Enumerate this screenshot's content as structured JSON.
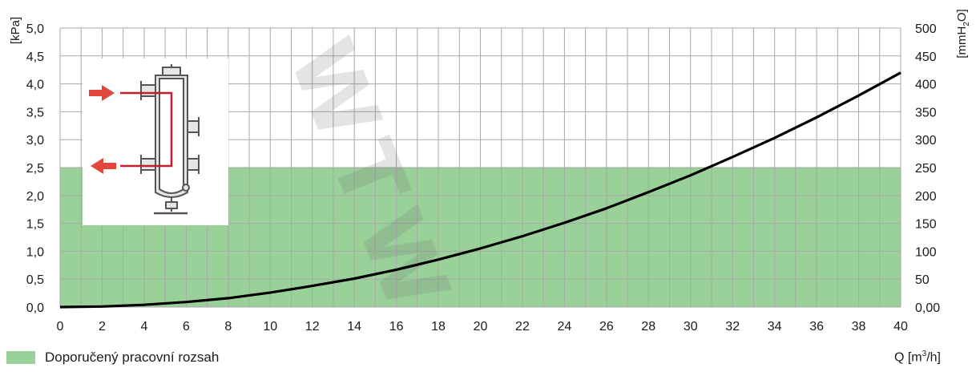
{
  "chart_data": {
    "type": "line",
    "title": "",
    "xlabel": "Q [m³/h]",
    "ylabel": "[kPa]",
    "y2label": "[mmH2O]",
    "xlim": [
      0,
      40
    ],
    "ylim": [
      0,
      5
    ],
    "y2lim": [
      0,
      500
    ],
    "x_ticks": [
      "0",
      "2",
      "4",
      "6",
      "8",
      "10",
      "12",
      "14",
      "16",
      "18",
      "20",
      "22",
      "24",
      "26",
      "28",
      "30",
      "32",
      "34",
      "36",
      "38",
      "40"
    ],
    "y_ticks": [
      "0,0",
      "0,5",
      "1,0",
      "1,5",
      "2,0",
      "2,5",
      "3,0",
      "3,5",
      "4,0",
      "4,5",
      "5,0"
    ],
    "y2_ticks": [
      "0,00",
      "50",
      "100",
      "150",
      "200",
      "250",
      "300",
      "350",
      "400",
      "450",
      "500"
    ],
    "grid": true,
    "series": [
      {
        "x": [
          0,
          2,
          4,
          6,
          8,
          10,
          12,
          14,
          16,
          18,
          20,
          22,
          24,
          26,
          28,
          30,
          32,
          34,
          36,
          38,
          40
        ],
        "y": [
          0.0,
          0.01,
          0.04,
          0.09,
          0.16,
          0.26,
          0.38,
          0.51,
          0.67,
          0.85,
          1.05,
          1.27,
          1.51,
          1.77,
          2.06,
          2.36,
          2.69,
          3.03,
          3.4,
          3.79,
          4.2
        ]
      }
    ],
    "recommended_range": {
      "y_from": 0,
      "y_to": 2.5,
      "label": "Doporučený pracovní rozsah"
    }
  },
  "colors": {
    "band": "#99d199",
    "grid": "#a8a8a8",
    "curve": "#000000",
    "arrow": "#e2463a",
    "inset_line": "#c0202a"
  },
  "icons": {
    "inset": "hydraulic-separator-diagram"
  },
  "watermark_text": "WTW"
}
